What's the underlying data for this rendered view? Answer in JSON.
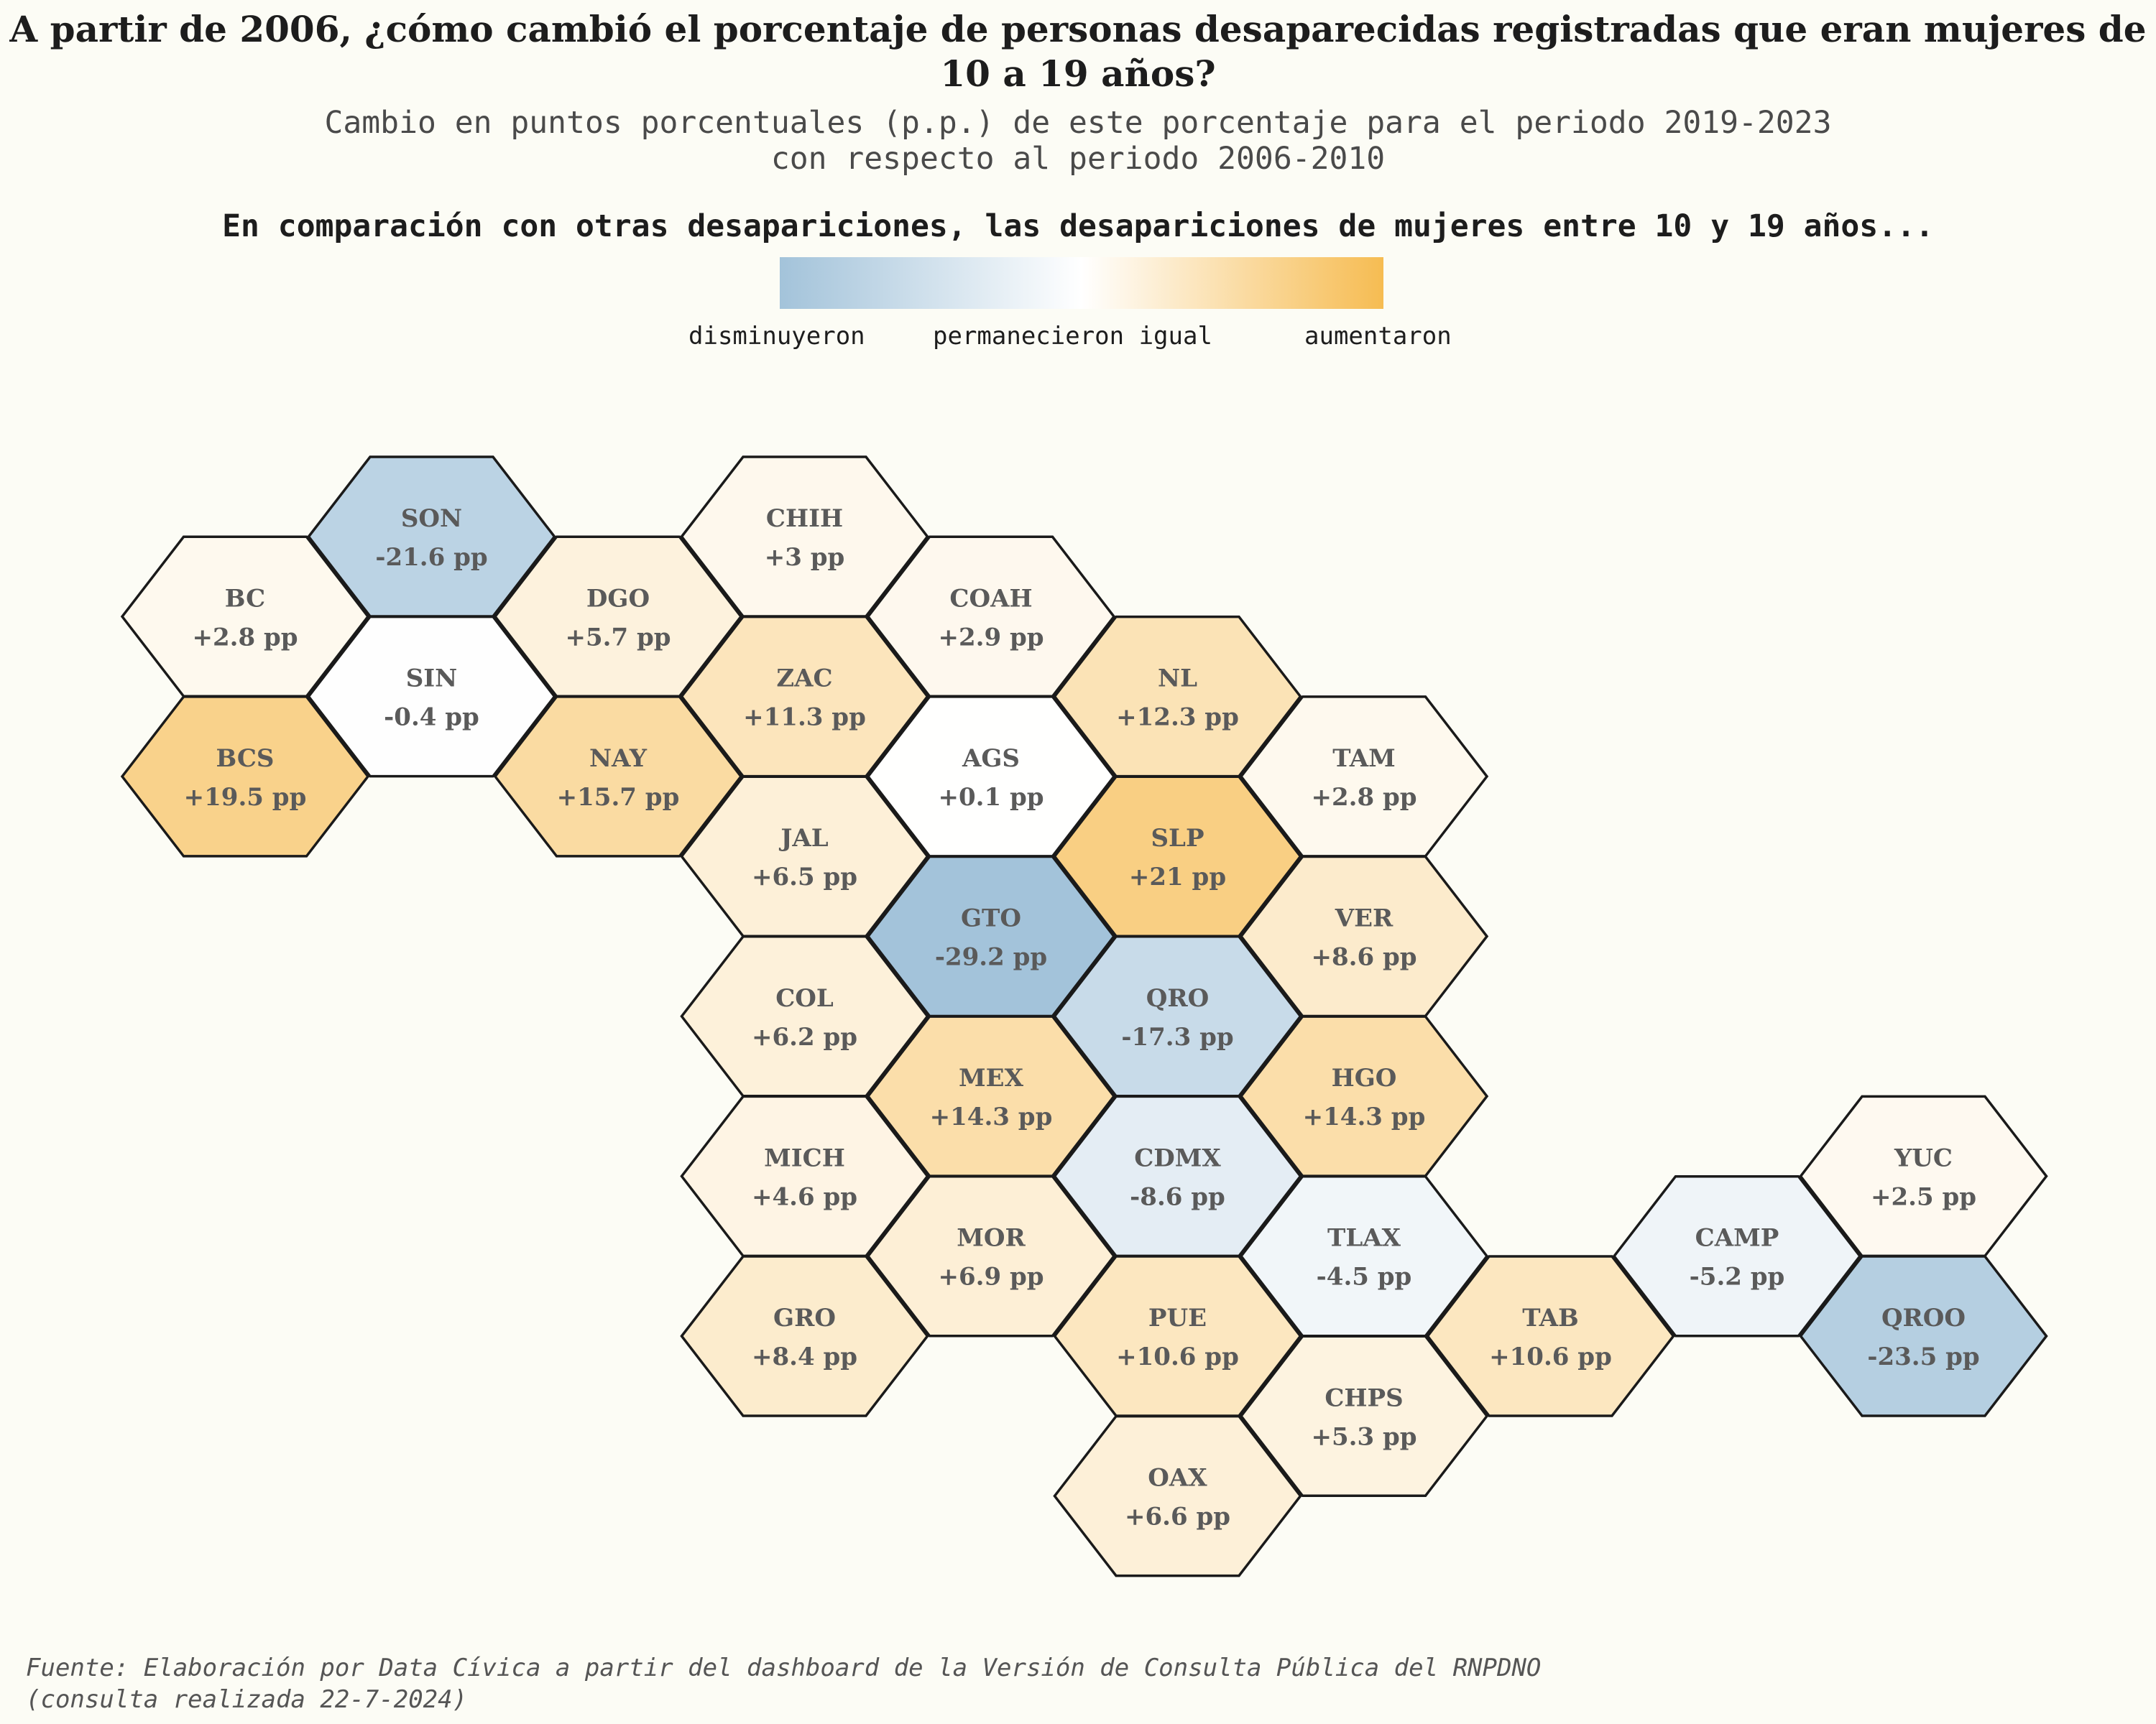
{
  "title": "A partir de 2006, ¿cómo cambió el porcentaje de personas desaparecidas registradas que eran mujeres de 10 a 19 años?",
  "subtitle_line1": "Cambio en puntos porcentuales (p.p.) de este porcentaje para el periodo 2019-2023",
  "subtitle_line2": "con respecto al periodo 2006-2010",
  "question": "En comparación con otras desapariciones, las desapariciones de mujeres entre 10 y 19 años...",
  "legend": {
    "low": "disminuyeron",
    "mid": "permanecieron igual",
    "high": "aumentaron",
    "colors": {
      "low": "#a3c3da",
      "mid": "#ffffff",
      "high": "#f6bc52"
    }
  },
  "source_line1": "Fuente: Elaboración por Data Cívica a partir del dashboard de la Versión de Consulta Pública del RNPDNO",
  "source_line2": "(consulta realizada 22-7-2024)",
  "states": [
    {
      "abbr": "SON",
      "value": -21.6,
      "label": "-21.6 pp",
      "col": 1,
      "row": 0
    },
    {
      "abbr": "CHIH",
      "value": 3,
      "label": "+3 pp",
      "col": 3,
      "row": 0
    },
    {
      "abbr": "BC",
      "value": 2.8,
      "label": "+2.8 pp",
      "col": 0,
      "row": 1
    },
    {
      "abbr": "DGO",
      "value": 5.7,
      "label": "+5.7 pp",
      "col": 2,
      "row": 1
    },
    {
      "abbr": "COAH",
      "value": 2.9,
      "label": "+2.9 pp",
      "col": 4,
      "row": 1
    },
    {
      "abbr": "SIN",
      "value": -0.4,
      "label": "-0.4 pp",
      "col": 1,
      "row": 2
    },
    {
      "abbr": "ZAC",
      "value": 11.3,
      "label": "+11.3 pp",
      "col": 3,
      "row": 2
    },
    {
      "abbr": "NL",
      "value": 12.3,
      "label": "+12.3 pp",
      "col": 5,
      "row": 2
    },
    {
      "abbr": "BCS",
      "value": 19.5,
      "label": "+19.5 pp",
      "col": 0,
      "row": 3
    },
    {
      "abbr": "NAY",
      "value": 15.7,
      "label": "+15.7 pp",
      "col": 2,
      "row": 3
    },
    {
      "abbr": "AGS",
      "value": 0.1,
      "label": "+0.1 pp",
      "col": 4,
      "row": 3
    },
    {
      "abbr": "TAM",
      "value": 2.8,
      "label": "+2.8 pp",
      "col": 6,
      "row": 3
    },
    {
      "abbr": "JAL",
      "value": 6.5,
      "label": "+6.5 pp",
      "col": 3,
      "row": 4
    },
    {
      "abbr": "SLP",
      "value": 21,
      "label": "+21 pp",
      "col": 5,
      "row": 4
    },
    {
      "abbr": "GTO",
      "value": -29.2,
      "label": "-29.2 pp",
      "col": 4,
      "row": 5
    },
    {
      "abbr": "VER",
      "value": 8.6,
      "label": "+8.6 pp",
      "col": 6,
      "row": 5
    },
    {
      "abbr": "COL",
      "value": 6.2,
      "label": "+6.2 pp",
      "col": 3,
      "row": 6
    },
    {
      "abbr": "QRO",
      "value": -17.3,
      "label": "-17.3 pp",
      "col": 5,
      "row": 6
    },
    {
      "abbr": "MEX",
      "value": 14.3,
      "label": "+14.3 pp",
      "col": 4,
      "row": 7
    },
    {
      "abbr": "HGO",
      "value": 14.3,
      "label": "+14.3 pp",
      "col": 6,
      "row": 7
    },
    {
      "abbr": "MICH",
      "value": 4.6,
      "label": "+4.6 pp",
      "col": 3,
      "row": 8
    },
    {
      "abbr": "CDMX",
      "value": -8.6,
      "label": "-8.6 pp",
      "col": 5,
      "row": 8
    },
    {
      "abbr": "YUC",
      "value": 2.5,
      "label": "+2.5 pp",
      "col": 9,
      "row": 8
    },
    {
      "abbr": "MOR",
      "value": 6.9,
      "label": "+6.9 pp",
      "col": 4,
      "row": 9
    },
    {
      "abbr": "TLAX",
      "value": -4.5,
      "label": "-4.5 pp",
      "col": 6,
      "row": 9
    },
    {
      "abbr": "CAMP",
      "value": -5.2,
      "label": "-5.2 pp",
      "col": 8,
      "row": 9
    },
    {
      "abbr": "GRO",
      "value": 8.4,
      "label": "+8.4 pp",
      "col": 3,
      "row": 10
    },
    {
      "abbr": "PUE",
      "value": 10.6,
      "label": "+10.6 pp",
      "col": 5,
      "row": 10
    },
    {
      "abbr": "TAB",
      "value": 10.6,
      "label": "+10.6 pp",
      "col": 7,
      "row": 10
    },
    {
      "abbr": "QROO",
      "value": -23.5,
      "label": "-23.5 pp",
      "col": 9,
      "row": 10
    },
    {
      "abbr": "CHPS",
      "value": 5.3,
      "label": "+5.3 pp",
      "col": 6,
      "row": 11
    },
    {
      "abbr": "OAX",
      "value": 6.6,
      "label": "+6.6 pp",
      "col": 5,
      "row": 12
    }
  ]
}
